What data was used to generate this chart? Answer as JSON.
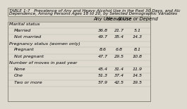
{
  "title_line1": "TABLE 1-7   Prevalence of Any and Heavy Alcohol Use in the Past 30 Days, and Alc",
  "title_line2": "Dependence, Among Persons Ages 18 to 20, by Selected Demographic Variables",
  "col_headers": [
    "Any Use",
    "Heavy Use",
    "Abuse or Depend"
  ],
  "sections": [
    {
      "section_header": "Marital status",
      "rows": [
        [
          "Married",
          "36.8",
          "21.7",
          "5.1"
        ],
        [
          "Not married",
          "49.7",
          "35.4",
          "14.3"
        ]
      ]
    },
    {
      "section_header": "Pregnancy status (women only)",
      "rows": [
        [
          "Pregnant",
          "8.6",
          "6.8",
          "8.1"
        ],
        [
          "Not pregnant",
          "47.7",
          "29.5",
          "10.8"
        ]
      ]
    },
    {
      "section_header": "Number of moves in past year",
      "rows": [
        [
          "None",
          "45.4",
          "31.4",
          "11.9"
        ],
        [
          "One",
          "51.3",
          "37.4",
          "14.5"
        ],
        [
          "Two or more",
          "57.9",
          "42.5",
          "19.5"
        ]
      ]
    }
  ],
  "bg_color": "#dedad0",
  "header_bg": "#c5c1b5",
  "border_color": "#888878",
  "title_fontsize": 4.2,
  "header_fontsize": 4.8,
  "cell_fontsize": 4.6,
  "section_fontsize": 4.6,
  "indent_fontsize": 4.6
}
